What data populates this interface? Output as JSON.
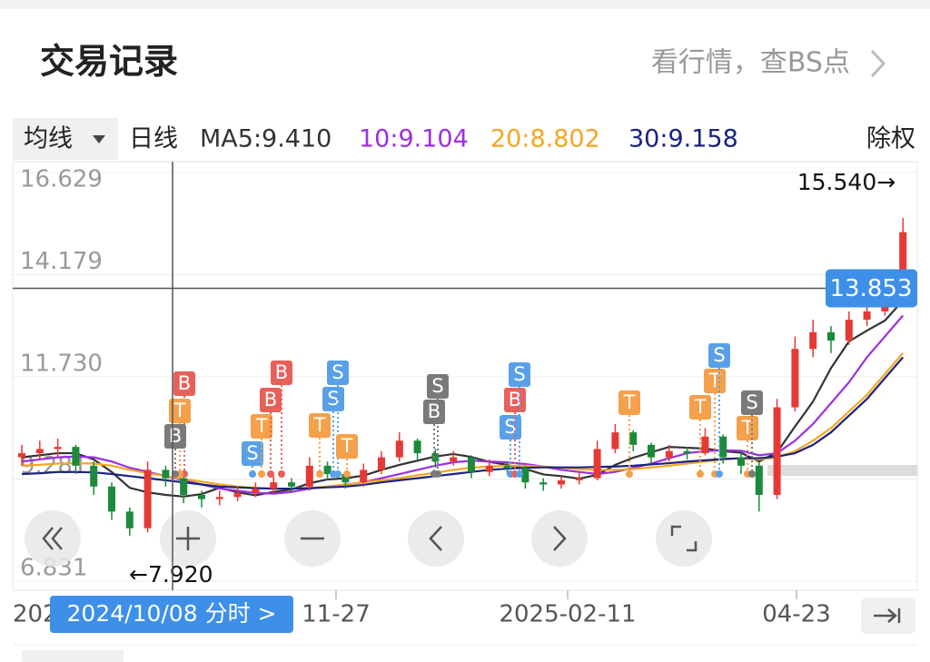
{
  "header": {
    "title": "交易记录",
    "link": "看行情，查BS点"
  },
  "chart_data": {
    "type": "candlestick",
    "indicator": "均线",
    "period": "日线",
    "adjust": "除权",
    "up_color": "#e53935",
    "down_color": "#1b8a3a",
    "ylim": [
      6.831,
      16.629
    ],
    "yticks": [
      6.831,
      9.281,
      11.73,
      {
        "value": 11.73,
        "label": "11.730"
      },
      14.179,
      16.629
    ],
    "grid": true,
    "x_labels": [
      "202",
      "11-27",
      "2025-02-11",
      "04-23"
    ],
    "crosshair": {
      "value": 13.853,
      "date": "2024/10/08 分时 >"
    },
    "max_label": "15.540→",
    "min_label": "←7.920",
    "candles": [
      [
        9.8,
        9.9,
        10.1,
        9.6
      ],
      [
        9.9,
        10.0,
        10.2,
        9.75
      ],
      [
        10.0,
        10.05,
        10.25,
        9.8
      ],
      [
        10.05,
        9.6,
        10.1,
        9.4
      ],
      [
        9.6,
        9.1,
        9.7,
        8.9
      ],
      [
        9.1,
        8.5,
        9.2,
        8.3
      ],
      [
        8.5,
        8.1,
        8.6,
        7.92
      ],
      [
        8.1,
        9.5,
        9.7,
        8.0
      ],
      [
        9.5,
        9.3,
        9.6,
        9.1
      ],
      [
        9.3,
        8.9,
        9.4,
        8.7
      ],
      [
        8.9,
        8.8,
        9.0,
        8.6
      ],
      [
        8.8,
        8.85,
        9.0,
        8.65
      ],
      [
        8.85,
        8.95,
        9.1,
        8.75
      ],
      [
        8.95,
        9.05,
        9.2,
        8.85
      ],
      [
        9.05,
        9.2,
        9.35,
        8.95
      ],
      [
        9.2,
        9.1,
        9.3,
        8.95
      ],
      [
        9.1,
        9.6,
        9.8,
        9.0
      ],
      [
        9.6,
        9.4,
        9.7,
        9.25
      ],
      [
        9.4,
        9.2,
        9.45,
        9.05
      ],
      [
        9.2,
        9.5,
        9.65,
        9.1
      ],
      [
        9.5,
        9.8,
        9.95,
        9.4
      ],
      [
        9.8,
        10.2,
        10.4,
        9.7
      ],
      [
        10.2,
        9.9,
        10.25,
        9.75
      ],
      [
        9.9,
        9.7,
        10.0,
        9.55
      ],
      [
        9.7,
        9.8,
        9.95,
        9.6
      ],
      [
        9.8,
        9.45,
        9.85,
        9.3
      ],
      [
        9.45,
        9.6,
        9.75,
        9.35
      ],
      [
        9.6,
        9.55,
        9.7,
        9.4
      ],
      [
        9.55,
        9.2,
        9.6,
        9.05
      ],
      [
        9.2,
        9.15,
        9.3,
        9.0
      ],
      [
        9.15,
        9.25,
        9.35,
        9.05
      ],
      [
        9.25,
        9.3,
        9.45,
        9.15
      ],
      [
        9.3,
        10.0,
        10.2,
        9.25
      ],
      [
        10.0,
        10.4,
        10.6,
        9.9
      ],
      [
        10.4,
        10.1,
        10.45,
        9.95
      ],
      [
        10.1,
        9.8,
        10.15,
        9.65
      ],
      [
        9.8,
        9.95,
        10.1,
        9.7
      ],
      [
        9.95,
        9.9,
        10.05,
        9.75
      ],
      [
        9.9,
        10.3,
        10.5,
        9.85
      ],
      [
        10.3,
        9.8,
        10.35,
        9.65
      ],
      [
        9.8,
        9.6,
        9.9,
        9.4
      ],
      [
        9.6,
        8.9,
        9.7,
        8.5
      ],
      [
        8.9,
        11.0,
        11.2,
        8.8
      ],
      [
        11.0,
        12.4,
        12.7,
        10.9
      ],
      [
        12.4,
        12.8,
        13.1,
        12.2
      ],
      [
        12.8,
        12.6,
        12.95,
        12.3
      ],
      [
        12.6,
        13.1,
        13.3,
        12.5
      ],
      [
        13.1,
        13.3,
        13.5,
        12.95
      ],
      [
        13.3,
        13.6,
        13.9,
        13.2
      ],
      [
        13.6,
        15.2,
        15.54,
        13.5
      ]
    ],
    "series": [
      {
        "name": "MA5:9.410",
        "color": "#333333",
        "values": [
          9.8,
          9.85,
          9.9,
          9.9,
          9.75,
          9.45,
          9.07,
          8.96,
          8.9,
          8.86,
          8.92,
          9.07,
          8.96,
          8.89,
          8.97,
          9.03,
          9.18,
          9.27,
          9.3,
          9.36,
          9.5,
          9.62,
          9.72,
          9.82,
          9.88,
          9.81,
          9.69,
          9.62,
          9.52,
          9.39,
          9.35,
          9.29,
          9.38,
          9.62,
          9.79,
          9.92,
          10.05,
          10.03,
          10.01,
          9.95,
          9.91,
          9.7,
          9.92,
          10.54,
          11.14,
          11.94,
          12.58,
          12.84,
          13.08,
          13.56
        ]
      },
      {
        "name": "10:9.104",
        "color": "#9b30e0",
        "values": [
          9.7,
          9.75,
          9.8,
          9.82,
          9.8,
          9.7,
          9.55,
          9.45,
          9.35,
          9.25,
          9.15,
          9.05,
          9.0,
          8.95,
          8.93,
          8.97,
          9.05,
          9.1,
          9.15,
          9.2,
          9.3,
          9.4,
          9.5,
          9.6,
          9.68,
          9.72,
          9.7,
          9.68,
          9.64,
          9.58,
          9.5,
          9.45,
          9.4,
          9.45,
          9.55,
          9.65,
          9.78,
          9.9,
          9.95,
          9.97,
          9.96,
          9.85,
          9.9,
          10.2,
          10.6,
          11.1,
          11.6,
          12.2,
          12.7,
          13.2
        ]
      },
      {
        "name": "20:8.802",
        "color": "#f5a623",
        "values": [
          9.6,
          9.62,
          9.65,
          9.66,
          9.65,
          9.6,
          9.5,
          9.42,
          9.35,
          9.28,
          9.22,
          9.15,
          9.1,
          9.07,
          9.05,
          9.05,
          9.07,
          9.1,
          9.15,
          9.2,
          9.25,
          9.3,
          9.37,
          9.43,
          9.5,
          9.55,
          9.58,
          9.6,
          9.6,
          9.58,
          9.55,
          9.52,
          9.5,
          9.5,
          9.52,
          9.56,
          9.6,
          9.65,
          9.7,
          9.75,
          9.78,
          9.75,
          9.8,
          9.95,
          10.2,
          10.5,
          10.9,
          11.3,
          11.8,
          12.3
        ]
      },
      {
        "name": "30:9.158",
        "color": "#1a237e",
        "values": [
          9.4,
          9.42,
          9.45,
          9.45,
          9.44,
          9.4,
          9.35,
          9.3,
          9.25,
          9.2,
          9.15,
          9.1,
          9.08,
          9.06,
          9.05,
          9.05,
          9.06,
          9.08,
          9.1,
          9.14,
          9.2,
          9.25,
          9.3,
          9.35,
          9.4,
          9.45,
          9.5,
          9.53,
          9.55,
          9.56,
          9.56,
          9.56,
          9.57,
          9.58,
          9.6,
          9.63,
          9.66,
          9.7,
          9.73,
          9.76,
          9.78,
          9.78,
          9.82,
          9.9,
          10.1,
          10.4,
          10.8,
          11.2,
          11.7,
          12.2
        ]
      }
    ],
    "markers": [
      {
        "label": "B",
        "color": "#e8605a"
      },
      {
        "label": "T",
        "color": "#f5a04a"
      },
      {
        "label": "B",
        "color": "#7a7a7a"
      },
      {
        "label": "S",
        "color": "#5aa0e8"
      },
      {
        "label": "T",
        "color": "#f5a04a"
      },
      {
        "label": "B",
        "color": "#e8605a"
      },
      {
        "label": "B",
        "color": "#e8605a"
      },
      {
        "label": "T",
        "color": "#f5a04a"
      },
      {
        "label": "S",
        "color": "#5aa0e8"
      },
      {
        "label": "S",
        "color": "#5aa0e8"
      },
      {
        "label": "T",
        "color": "#f5a04a"
      },
      {
        "label": "S",
        "color": "#7a7a7a"
      },
      {
        "label": "B",
        "color": "#7a7a7a"
      },
      {
        "label": "S",
        "color": "#5aa0e8"
      },
      {
        "label": "B",
        "color": "#e8605a"
      },
      {
        "label": "S",
        "color": "#5aa0e8"
      },
      {
        "label": "T",
        "color": "#f5a04a"
      },
      {
        "label": "T",
        "color": "#f5a04a"
      },
      {
        "label": "T",
        "color": "#f5a04a"
      },
      {
        "label": "S",
        "color": "#5aa0e8"
      },
      {
        "label": "T",
        "color": "#f5a04a"
      },
      {
        "label": "S",
        "color": "#7a7a7a"
      }
    ]
  }
}
